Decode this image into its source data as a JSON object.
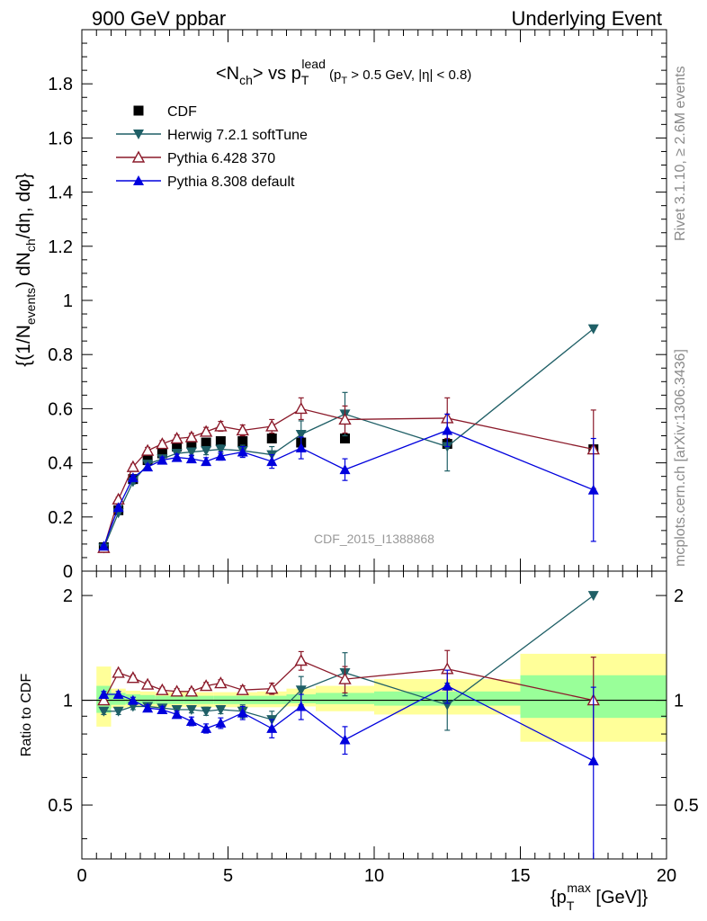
{
  "header": {
    "left": "900 GeV ppbar",
    "right": "Underlying Event"
  },
  "side_labels": {
    "rivet": "Rivet 3.1.10, ≥ 2.6M events",
    "mcplots": "mcplots.cern.ch [arXiv:1306.3436]"
  },
  "chart_data": [
    {
      "type": "scatter",
      "title": "<N_ch> vs p_T^lead (p_T > 0.5 GeV, |η| < 0.8)",
      "watermark": "CDF_2015_I1388868",
      "ylabel": "{(1/N_events) dN_ch/dη, dφ}",
      "xlim": [
        0,
        20
      ],
      "ylim": [
        0,
        2.0
      ],
      "yticks": [
        "0",
        "0.2",
        "0.4",
        "0.6",
        "0.8",
        "1",
        "1.2",
        "1.4",
        "1.6",
        "1.8"
      ],
      "legend_position": "top-left",
      "series": [
        {
          "name": "CDF",
          "color": "#000000",
          "marker": "square",
          "x": [
            0.75,
            1.25,
            1.75,
            2.25,
            2.75,
            3.25,
            3.75,
            4.25,
            4.75,
            5.5,
            6.5,
            7.5,
            9.0,
            12.5,
            17.5
          ],
          "y": [
            0.088,
            0.225,
            0.34,
            0.41,
            0.435,
            0.46,
            0.47,
            0.475,
            0.48,
            0.48,
            0.49,
            0.475,
            0.49,
            0.47,
            0.45
          ]
        },
        {
          "name": "Herwig 7.2.1 softTune",
          "color": "#1f5f66",
          "marker": "triangle-down",
          "x": [
            0.75,
            1.25,
            1.75,
            2.25,
            2.75,
            3.25,
            3.75,
            4.25,
            4.75,
            5.5,
            6.5,
            7.5,
            9.0,
            12.5,
            17.5
          ],
          "y": [
            0.085,
            0.215,
            0.33,
            0.395,
            0.415,
            0.435,
            0.44,
            0.445,
            0.45,
            0.445,
            0.43,
            0.505,
            0.58,
            0.46,
            0.895
          ],
          "err": [
            0.005,
            0.006,
            0.008,
            0.01,
            0.01,
            0.012,
            0.014,
            0.015,
            0.016,
            0.02,
            0.03,
            0.05,
            0.08,
            0.09,
            0.0
          ]
        },
        {
          "name": "Pythia 6.428 370",
          "color": "#8b1a2a",
          "marker": "triangle-up-open",
          "x": [
            0.75,
            1.25,
            1.75,
            2.25,
            2.75,
            3.25,
            3.75,
            4.25,
            4.75,
            5.5,
            6.5,
            7.5,
            9.0,
            12.5,
            17.5
          ],
          "y": [
            0.086,
            0.265,
            0.385,
            0.445,
            0.47,
            0.49,
            0.495,
            0.515,
            0.535,
            0.52,
            0.535,
            0.6,
            0.56,
            0.565,
            0.45
          ],
          "err": [
            0.005,
            0.008,
            0.01,
            0.012,
            0.012,
            0.013,
            0.014,
            0.016,
            0.018,
            0.02,
            0.025,
            0.04,
            0.05,
            0.075,
            0.145
          ]
        },
        {
          "name": "Pythia 8.308 default",
          "color": "#0000dd",
          "marker": "triangle-up",
          "x": [
            0.75,
            1.25,
            1.75,
            2.25,
            2.75,
            3.25,
            3.75,
            4.25,
            4.75,
            5.5,
            6.5,
            7.5,
            9.0,
            12.5,
            17.5
          ],
          "y": [
            0.092,
            0.235,
            0.345,
            0.385,
            0.41,
            0.42,
            0.415,
            0.405,
            0.425,
            0.44,
            0.405,
            0.455,
            0.375,
            0.52,
            0.3
          ],
          "err": [
            0.005,
            0.007,
            0.009,
            0.01,
            0.011,
            0.012,
            0.013,
            0.014,
            0.015,
            0.02,
            0.025,
            0.04,
            0.04,
            0.06,
            0.19
          ]
        }
      ]
    },
    {
      "type": "scatter",
      "ylabel": "Ratio to CDF",
      "xlabel": "{p_T^max [GeV]}",
      "xlim": [
        0,
        20
      ],
      "ylim": [
        0.35,
        2.35
      ],
      "yticks": [
        "0.5",
        "1",
        "2"
      ],
      "xticks": [
        "0",
        "5",
        "10",
        "15",
        "20"
      ],
      "bands": {
        "edges": [
          0.5,
          1.0,
          1.5,
          2.0,
          2.5,
          3.0,
          3.5,
          4.0,
          4.5,
          5.0,
          6.0,
          7.0,
          8.0,
          10.0,
          15.0,
          20.0
        ],
        "inner": [
          [
            0.92,
            1.1
          ],
          [
            0.97,
            1.05
          ],
          [
            0.975,
            1.04
          ],
          [
            0.975,
            1.035
          ],
          [
            0.975,
            1.03
          ],
          [
            0.975,
            1.03
          ],
          [
            0.975,
            1.03
          ],
          [
            0.975,
            1.03
          ],
          [
            0.975,
            1.03
          ],
          [
            0.975,
            1.03
          ],
          [
            0.975,
            1.03
          ],
          [
            0.98,
            1.04
          ],
          [
            0.975,
            1.05
          ],
          [
            0.965,
            1.06
          ],
          [
            0.89,
            1.18
          ]
        ],
        "outer": [
          [
            0.84,
            1.25
          ],
          [
            0.95,
            1.08
          ],
          [
            0.955,
            1.065
          ],
          [
            0.955,
            1.06
          ],
          [
            0.955,
            1.055
          ],
          [
            0.955,
            1.055
          ],
          [
            0.955,
            1.055
          ],
          [
            0.955,
            1.055
          ],
          [
            0.955,
            1.055
          ],
          [
            0.955,
            1.055
          ],
          [
            0.955,
            1.06
          ],
          [
            0.96,
            1.08
          ],
          [
            0.93,
            1.1
          ],
          [
            0.91,
            1.15
          ],
          [
            0.76,
            1.36
          ]
        ]
      },
      "series": [
        {
          "name": "Herwig 7.2.1 softTune",
          "color": "#1f5f66",
          "marker": "triangle-down",
          "x": [
            0.75,
            1.25,
            1.75,
            2.25,
            2.75,
            3.25,
            3.75,
            4.25,
            4.75,
            5.5,
            6.5,
            7.5,
            9.0,
            12.5,
            17.5
          ],
          "y": [
            0.93,
            0.93,
            0.96,
            0.96,
            0.95,
            0.94,
            0.94,
            0.93,
            0.94,
            0.93,
            0.88,
            1.07,
            1.2,
            0.97,
            2.0
          ],
          "err": [
            0.02,
            0.02,
            0.02,
            0.02,
            0.02,
            0.02,
            0.02,
            0.025,
            0.025,
            0.04,
            0.05,
            0.1,
            0.17,
            0.15,
            0.0
          ]
        },
        {
          "name": "Pythia 6.428 370",
          "color": "#8b1a2a",
          "marker": "triangle-up-open",
          "x": [
            0.75,
            1.25,
            1.75,
            2.25,
            2.75,
            3.25,
            3.75,
            4.25,
            4.75,
            5.5,
            6.5,
            7.5,
            9.0,
            12.5,
            17.5
          ],
          "y": [
            1.0,
            1.2,
            1.16,
            1.11,
            1.07,
            1.06,
            1.06,
            1.1,
            1.12,
            1.07,
            1.08,
            1.3,
            1.15,
            1.23,
            1.0
          ],
          "err": [
            0.02,
            0.02,
            0.02,
            0.02,
            0.02,
            0.02,
            0.02,
            0.025,
            0.025,
            0.03,
            0.04,
            0.08,
            0.1,
            0.16,
            0.33
          ]
        },
        {
          "name": "Pythia 8.308 default",
          "color": "#0000dd",
          "marker": "triangle-up",
          "x": [
            0.75,
            1.25,
            1.75,
            2.25,
            2.75,
            3.25,
            3.75,
            4.25,
            4.75,
            5.5,
            6.5,
            7.5,
            9.0,
            12.5,
            17.5
          ],
          "y": [
            1.04,
            1.04,
            1.0,
            0.95,
            0.94,
            0.91,
            0.87,
            0.83,
            0.86,
            0.92,
            0.83,
            0.96,
            0.77,
            1.1,
            0.67
          ],
          "err": [
            0.02,
            0.02,
            0.02,
            0.02,
            0.02,
            0.02,
            0.025,
            0.025,
            0.03,
            0.04,
            0.05,
            0.08,
            0.07,
            0.12,
            0.42
          ]
        }
      ]
    }
  ]
}
